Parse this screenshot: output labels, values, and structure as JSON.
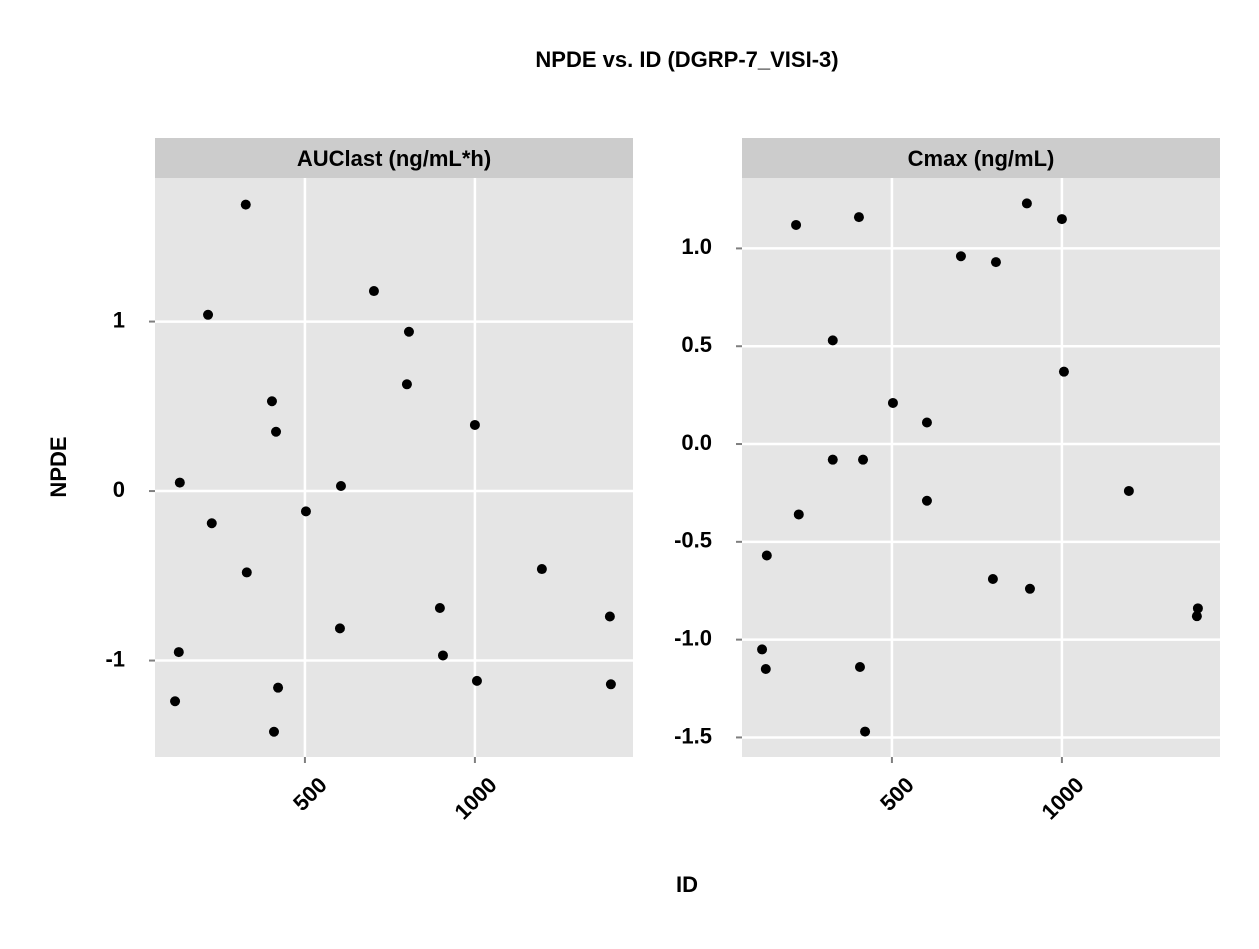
{
  "title": "NPDE vs. ID (DGRP-7_VISI-3)",
  "x_label": "ID",
  "y_label": "NPDE",
  "chart_data": [
    {
      "type": "scatter",
      "title": "AUClast (ng/mL*h)",
      "color": "#000000",
      "grid": true,
      "xlim": [
        59,
        1465
      ],
      "ylim": [
        -1.569,
        1.847
      ],
      "xticks": [
        500,
        1000
      ],
      "yticks": [
        -1,
        0,
        1
      ],
      "x": [
        326,
        215,
        132,
        226,
        329,
        129,
        118,
        403,
        415,
        421,
        409,
        503,
        606,
        603,
        703,
        806,
        800,
        897,
        906,
        1000,
        1006,
        1197,
        1397,
        1400
      ],
      "values": [
        1.69,
        1.04,
        0.05,
        -0.19,
        -0.48,
        -0.95,
        -1.24,
        0.53,
        0.35,
        -1.16,
        -1.42,
        -0.12,
        0.03,
        -0.81,
        1.18,
        0.94,
        0.63,
        -0.69,
        -0.97,
        0.39,
        -1.12,
        -0.46,
        -0.74,
        -1.14
      ]
    },
    {
      "type": "scatter",
      "title": "Cmax (ng/mL)",
      "color": "#000000",
      "grid": true,
      "xlim": [
        59,
        1465
      ],
      "ylim": [
        -1.6,
        1.36
      ],
      "xticks": [
        500,
        1000
      ],
      "yticks": [
        -1.5,
        {
          "value": -1,
          "label": "-1.0"
        },
        -0.5,
        {
          "value": 0,
          "label": "0.0"
        },
        0.5,
        {
          "value": 1,
          "label": "1.0"
        }
      ],
      "x": [
        218,
        403,
        897,
        1000,
        703,
        806,
        326,
        503,
        603,
        1006,
        326,
        415,
        603,
        226,
        132,
        1197,
        797,
        906,
        118,
        129,
        406,
        421,
        1400,
        1397
      ],
      "values": [
        1.12,
        1.16,
        1.23,
        1.15,
        0.96,
        0.93,
        0.53,
        0.21,
        0.11,
        0.37,
        -0.08,
        -0.08,
        -0.29,
        -0.36,
        -0.57,
        -0.24,
        -0.69,
        -0.74,
        -1.05,
        -1.15,
        -1.14,
        -1.47,
        -0.84,
        -0.88
      ]
    }
  ]
}
